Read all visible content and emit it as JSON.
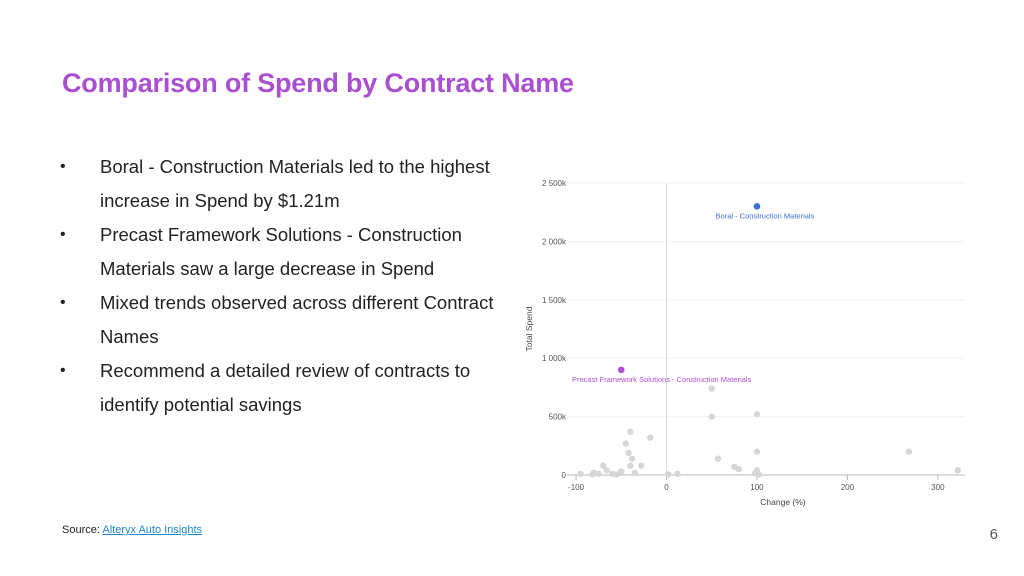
{
  "slide": {
    "title": "Comparison of Spend by Contract Name",
    "bullets": [
      "Boral - Construction Materials led to the highest increase in Spend by $1.21m",
      "Precast Framework Solutions - Construction Materials saw a large decrease in Spend",
      "Mixed trends observed across different Contract Names",
      "Recommend a detailed review of contracts to identify potential savings"
    ],
    "source_label": "Source:",
    "source_link": "Alteryx Auto Insights",
    "page_number": "6"
  },
  "colors": {
    "title": "#a94fd0",
    "highlight_blue": "#3b6fd4",
    "highlight_purple": "#b44fd6",
    "point_grey": "#d6d6d9",
    "link": "#1f86c9"
  },
  "chart_data": {
    "type": "scatter",
    "xlabel": "Change (%)",
    "ylabel": "Total Spend",
    "xlim": [
      -110,
      330
    ],
    "ylim": [
      0,
      2500000
    ],
    "xticks": [
      -100,
      0,
      100,
      200,
      300
    ],
    "xtick_labels": [
      "-100",
      "0",
      "100",
      "200",
      "300"
    ],
    "yticks": [
      0,
      500000,
      1000000,
      1500000,
      2000000,
      2500000
    ],
    "ytick_labels": [
      "0",
      "500k",
      "1 000k",
      "1 500k",
      "2 000k",
      "2 500k"
    ],
    "grid": "horizontal",
    "highlights": [
      {
        "label": "Boral - Construction Materials",
        "x": 100,
        "y": 2300000,
        "color": "#3b6fd4"
      },
      {
        "label": "Precast Framework Solutions - Construction Materials",
        "x": -50,
        "y": 900000,
        "color": "#b44fd6"
      }
    ],
    "points": [
      {
        "x": -95,
        "y": 10000
      },
      {
        "x": -82,
        "y": 5000
      },
      {
        "x": -80,
        "y": 20000
      },
      {
        "x": -75,
        "y": 10000
      },
      {
        "x": -70,
        "y": 80000
      },
      {
        "x": -66,
        "y": 40000
      },
      {
        "x": -60,
        "y": 10000
      },
      {
        "x": -55,
        "y": 5000
      },
      {
        "x": -50,
        "y": 30000
      },
      {
        "x": -45,
        "y": 270000
      },
      {
        "x": -42,
        "y": 190000
      },
      {
        "x": -40,
        "y": 370000
      },
      {
        "x": -40,
        "y": 80000
      },
      {
        "x": -38,
        "y": 140000
      },
      {
        "x": -35,
        "y": 20000
      },
      {
        "x": -28,
        "y": 80000
      },
      {
        "x": -18,
        "y": 320000
      },
      {
        "x": 2,
        "y": 5000
      },
      {
        "x": 12,
        "y": 10000
      },
      {
        "x": 50,
        "y": 740000
      },
      {
        "x": 50,
        "y": 500000
      },
      {
        "x": 57,
        "y": 140000
      },
      {
        "x": 75,
        "y": 70000
      },
      {
        "x": 80,
        "y": 50000
      },
      {
        "x": 98,
        "y": 15000
      },
      {
        "x": 100,
        "y": 520000
      },
      {
        "x": 100,
        "y": 200000
      },
      {
        "x": 100,
        "y": 40000
      },
      {
        "x": 102,
        "y": 5000
      },
      {
        "x": 268,
        "y": 200000
      },
      {
        "x": 322,
        "y": 40000
      }
    ]
  }
}
